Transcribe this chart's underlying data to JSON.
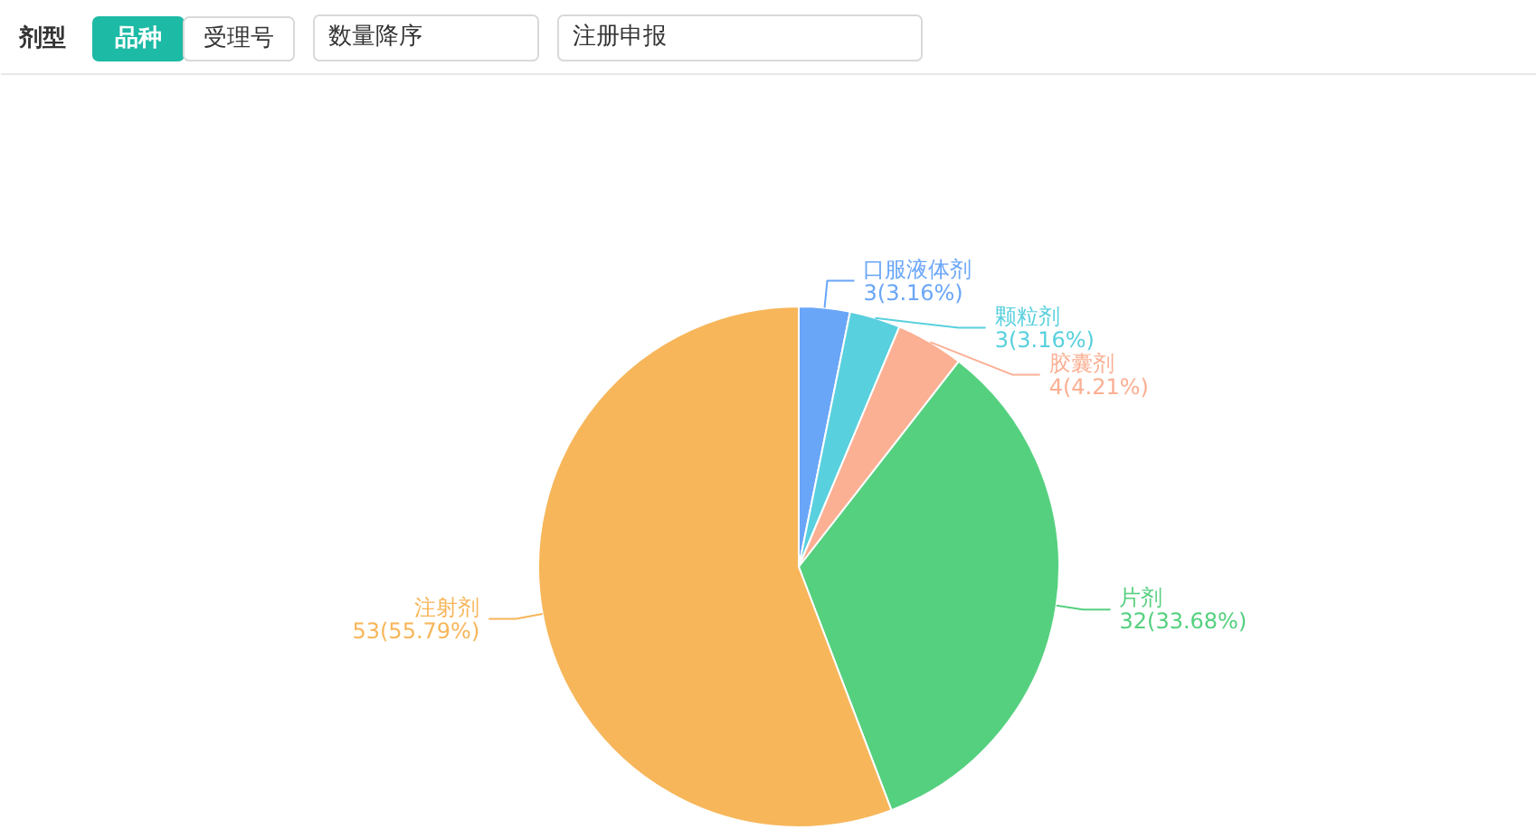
{
  "chart_data": {
    "type": "pie",
    "title": "剂型",
    "annotations": [
      "品种",
      "受理号",
      "数量降序",
      "注册申报"
    ],
    "categories": [
      "口服液体剂",
      "颗粒剂",
      "胶囊剂",
      "片剂",
      "注射剂"
    ],
    "values": [
      3,
      3,
      4,
      32,
      53
    ],
    "value_labels": [
      "3(3.16%)",
      "3(3.16%)",
      "4(4.21%)",
      "32(33.68%)",
      "53(55.79%)"
    ],
    "colors": [
      "#6aa6f8",
      "#59d0de",
      "#fbaf93",
      "#55d07f",
      "#f7b65a"
    ]
  }
}
